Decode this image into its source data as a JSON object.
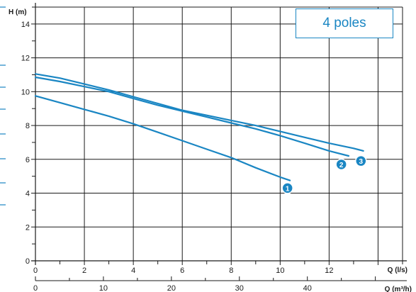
{
  "chart_data": {
    "type": "line",
    "ylabel": "H (m)",
    "xlabel": "Q (l/s)",
    "x2label": "Q (m³/h)",
    "xlim": [
      0,
      15
    ],
    "ylim": [
      0,
      15
    ],
    "x2lim": [
      0,
      54
    ],
    "xticks": [
      0,
      2,
      4,
      6,
      8,
      10,
      12
    ],
    "yticks": [
      0,
      2,
      4,
      6,
      8,
      10,
      12,
      14
    ],
    "x2ticks": [
      0,
      10,
      20,
      30,
      40
    ],
    "grid": true,
    "legend_text": "4 poles",
    "series": [
      {
        "name": "1",
        "x": [
          0,
          1,
          2,
          3,
          4,
          5,
          6,
          7,
          8,
          9,
          10,
          10.4
        ],
        "y": [
          9.75,
          9.35,
          8.95,
          8.55,
          8.1,
          7.6,
          7.1,
          6.6,
          6.1,
          5.5,
          4.95,
          4.75
        ]
      },
      {
        "name": "2",
        "x": [
          0,
          1,
          2,
          3,
          4,
          5,
          6,
          7,
          8,
          9,
          10,
          11,
          12,
          12.8
        ],
        "y": [
          10.85,
          10.6,
          10.3,
          10.0,
          9.6,
          9.2,
          8.85,
          8.5,
          8.15,
          7.8,
          7.4,
          6.95,
          6.5,
          6.2
        ]
      },
      {
        "name": "3",
        "x": [
          0,
          1,
          2,
          3,
          4,
          5,
          6,
          7,
          8,
          9,
          10,
          11,
          12,
          13,
          13.4
        ],
        "y": [
          11.05,
          10.8,
          10.45,
          10.1,
          9.7,
          9.3,
          8.9,
          8.6,
          8.3,
          8.0,
          7.65,
          7.3,
          6.95,
          6.65,
          6.5
        ]
      }
    ],
    "markers": [
      {
        "label": "1",
        "x": 10.3,
        "y": 4.3
      },
      {
        "label": "2",
        "x": 12.5,
        "y": 5.7
      },
      {
        "label": "3",
        "x": 13.3,
        "y": 5.9
      }
    ],
    "colors": {
      "line": "#1a86c3",
      "grid": "#1a1a1a",
      "marker": "#1a86c3"
    }
  }
}
